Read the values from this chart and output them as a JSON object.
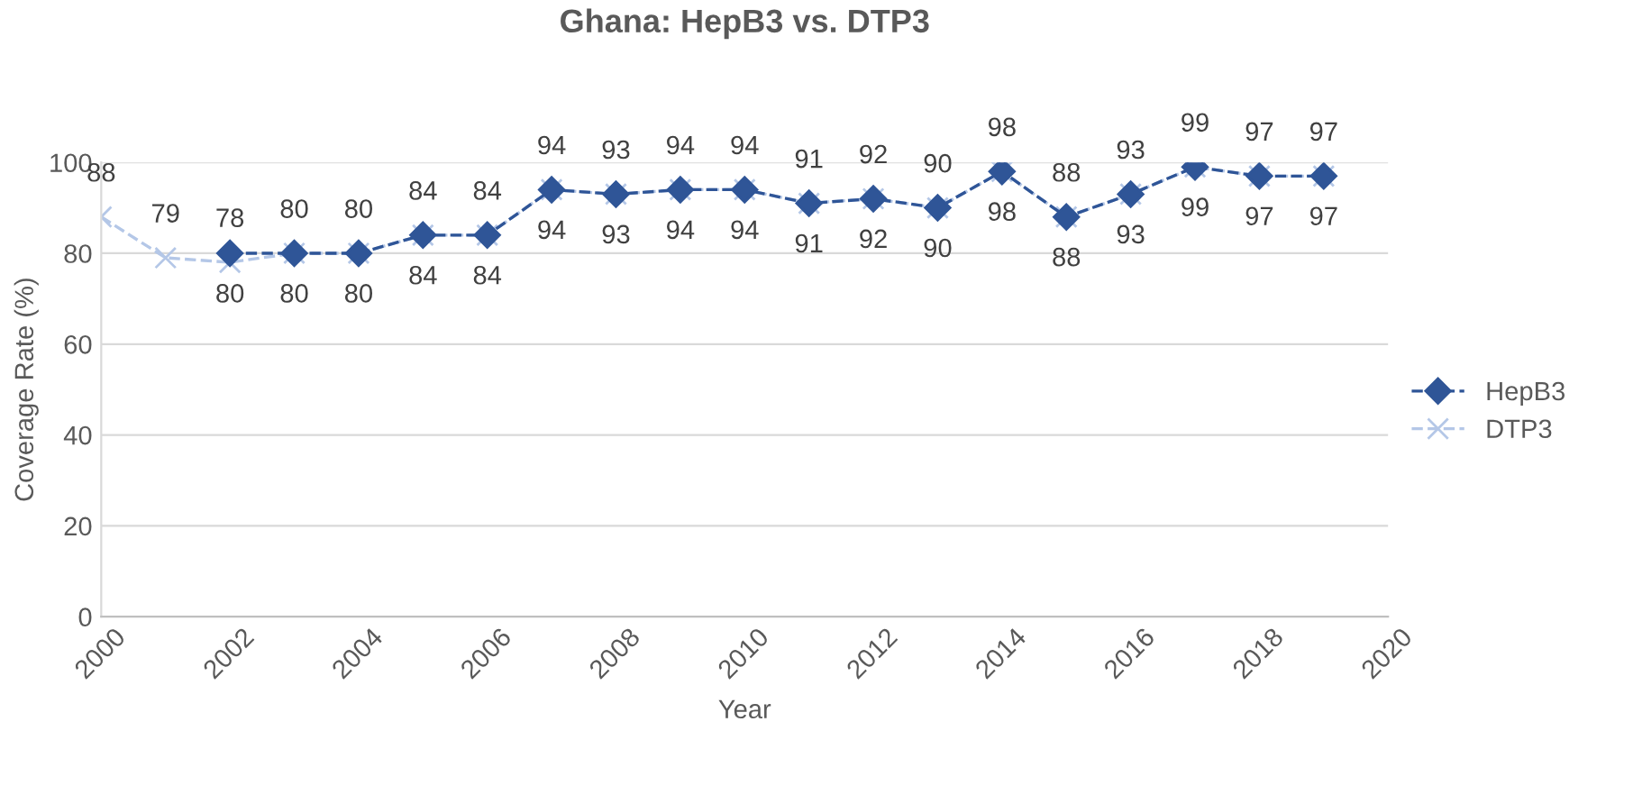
{
  "chart_data": {
    "type": "line",
    "title": "Ghana: HepB3 vs. DTP3",
    "xlabel": "Year",
    "ylabel": "Coverage Rate (%)",
    "xlim": [
      2000,
      2020
    ],
    "xticks": [
      2000,
      2002,
      2004,
      2006,
      2008,
      2010,
      2012,
      2014,
      2016,
      2018,
      2020
    ],
    "ylim": [
      0,
      100
    ],
    "yticks": [
      0,
      20,
      40,
      60,
      80,
      100
    ],
    "grid": "y",
    "legend": "right",
    "line_style": "dashed",
    "data_labels": true,
    "series": [
      {
        "name": "HepB3",
        "color": "#2f5597",
        "marker": "diamond",
        "x": [
          2002,
          2003,
          2004,
          2005,
          2006,
          2007,
          2008,
          2009,
          2010,
          2011,
          2012,
          2013,
          2014,
          2015,
          2016,
          2017,
          2018,
          2019
        ],
        "values": [
          80,
          80,
          80,
          84,
          84,
          94,
          93,
          94,
          94,
          91,
          92,
          90,
          98,
          88,
          93,
          99,
          97,
          97
        ]
      },
      {
        "name": "DTP3",
        "color": "#b4c7e7",
        "marker": "cross",
        "x": [
          2000,
          2001,
          2002,
          2003,
          2004,
          2005,
          2006,
          2007,
          2008,
          2009,
          2010,
          2011,
          2012,
          2013,
          2014,
          2015,
          2016,
          2017,
          2018,
          2019
        ],
        "values": [
          88,
          79,
          78,
          80,
          80,
          84,
          84,
          94,
          93,
          94,
          94,
          91,
          92,
          90,
          98,
          88,
          93,
          99,
          97,
          97
        ]
      }
    ]
  }
}
